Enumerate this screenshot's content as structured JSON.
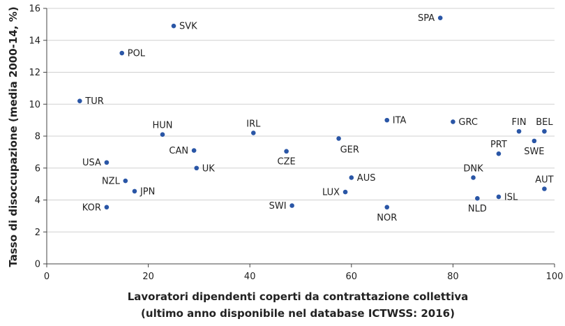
{
  "chart_data": {
    "type": "scatter",
    "xlabel_lines": [
      "Lavoratori dipendenti coperti da contrattazione collettiva",
      "(ultimo anno disponibile nel database ICTWSS: 2016)"
    ],
    "ylabel": "Tasso di disoccupazione (media 2000-14, %)",
    "xlim": [
      0,
      100
    ],
    "ylim": [
      0,
      16
    ],
    "xticks": [
      "0",
      "20",
      "40",
      "60",
      "80",
      "100"
    ],
    "yticks": [
      "0",
      "2",
      "4",
      "6",
      "8",
      "10",
      "12",
      "14",
      "16"
    ],
    "grid": "horizontal",
    "point_color": "#2a56a6",
    "points": [
      {
        "label": "SPA",
        "x": 77.5,
        "y": 15.4,
        "pos": "left"
      },
      {
        "label": "SVK",
        "x": 25.0,
        "y": 14.9,
        "pos": "right"
      },
      {
        "label": "POL",
        "x": 14.8,
        "y": 13.2,
        "pos": "right"
      },
      {
        "label": "TUR",
        "x": 6.5,
        "y": 10.2,
        "pos": "right"
      },
      {
        "label": "HUN",
        "x": 22.8,
        "y": 8.1,
        "pos": "above"
      },
      {
        "label": "IRL",
        "x": 40.7,
        "y": 8.2,
        "pos": "above"
      },
      {
        "label": "ITA",
        "x": 67.0,
        "y": 9.0,
        "pos": "right"
      },
      {
        "label": "GRC",
        "x": 80.0,
        "y": 8.9,
        "pos": "right"
      },
      {
        "label": "FIN",
        "x": 93.0,
        "y": 8.3,
        "pos": "above"
      },
      {
        "label": "BEL",
        "x": 98.0,
        "y": 8.3,
        "pos": "above"
      },
      {
        "label": "SWE",
        "x": 96.0,
        "y": 7.7,
        "pos": "below"
      },
      {
        "label": "GER",
        "x": 57.5,
        "y": 7.85,
        "pos": "belowright"
      },
      {
        "label": "PRT",
        "x": 89.0,
        "y": 6.9,
        "pos": "above"
      },
      {
        "label": "CAN",
        "x": 29.0,
        "y": 7.1,
        "pos": "left"
      },
      {
        "label": "CZE",
        "x": 47.2,
        "y": 7.05,
        "pos": "below"
      },
      {
        "label": "USA",
        "x": 11.8,
        "y": 6.35,
        "pos": "left"
      },
      {
        "label": "UK",
        "x": 29.5,
        "y": 6.0,
        "pos": "right"
      },
      {
        "label": "DNK",
        "x": 84.0,
        "y": 5.4,
        "pos": "above"
      },
      {
        "label": "AUS",
        "x": 60.0,
        "y": 5.4,
        "pos": "right"
      },
      {
        "label": "NZL",
        "x": 15.5,
        "y": 5.2,
        "pos": "left"
      },
      {
        "label": "AUT",
        "x": 98.0,
        "y": 4.7,
        "pos": "above"
      },
      {
        "label": "JPN",
        "x": 17.3,
        "y": 4.55,
        "pos": "right"
      },
      {
        "label": "LUX",
        "x": 58.8,
        "y": 4.5,
        "pos": "left"
      },
      {
        "label": "ISL",
        "x": 89.0,
        "y": 4.2,
        "pos": "right"
      },
      {
        "label": "NLD",
        "x": 84.8,
        "y": 4.1,
        "pos": "below"
      },
      {
        "label": "SWI",
        "x": 48.3,
        "y": 3.65,
        "pos": "left"
      },
      {
        "label": "KOR",
        "x": 11.8,
        "y": 3.55,
        "pos": "left"
      },
      {
        "label": "NOR",
        "x": 67.0,
        "y": 3.55,
        "pos": "below"
      }
    ]
  }
}
